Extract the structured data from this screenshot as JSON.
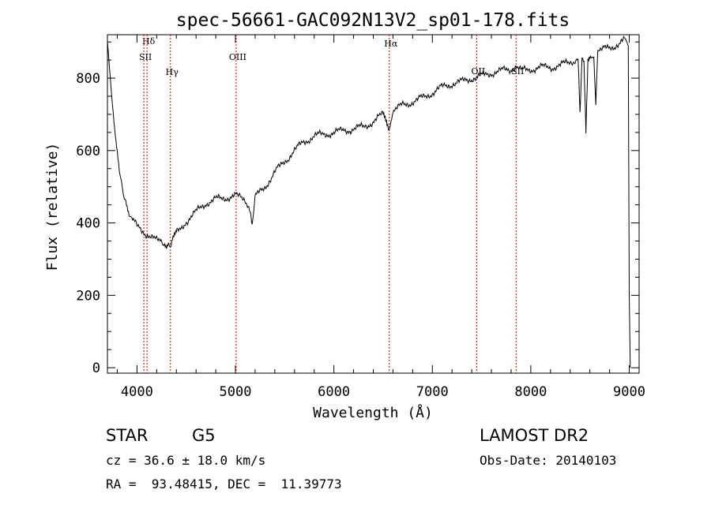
{
  "chart_data": {
    "type": "line",
    "title": "spec-56661-GAC092N13V2_sp01-178.fits",
    "xlabel": "Wavelength (Å)",
    "ylabel": "Flux (relative)",
    "xlim": [
      3700,
      9100
    ],
    "ylim": [
      -15,
      920
    ],
    "x_ticks": [
      4000,
      5000,
      6000,
      7000,
      8000,
      9000
    ],
    "x_tick_labels": [
      "4000",
      "5000",
      "6000",
      "7000",
      "8000",
      "9000"
    ],
    "y_ticks": [
      0,
      200,
      400,
      600,
      800
    ],
    "y_tick_labels": [
      "0",
      "200",
      "400",
      "600",
      "800"
    ],
    "grid": false,
    "line_color": "#000000",
    "marker_color": "#cc0000",
    "lines": [
      {
        "label": "Hδ",
        "x": 4102
      },
      {
        "label": "SII",
        "x": 4070
      },
      {
        "label": "Hγ",
        "x": 4340
      },
      {
        "label": "OIII",
        "x": 5007
      },
      {
        "label": "Hα",
        "x": 6563
      },
      {
        "label": "OII",
        "x": 7450
      },
      {
        "label": "SII",
        "x": 7850
      }
    ],
    "series": [
      {
        "x": [
          3700,
          3710,
          3720,
          3730,
          3740,
          3760,
          3780,
          3800,
          3820,
          3850,
          3880,
          3900,
          3920,
          3950,
          4000,
          4050,
          4100,
          4150,
          4200,
          4250,
          4280,
          4300,
          4320,
          4340,
          4360,
          4400,
          4450,
          4500,
          4600,
          4700,
          4800,
          4900,
          5000,
          5100,
          5150,
          5170,
          5200,
          5300,
          5400,
          5500,
          5600,
          5700,
          5800,
          5900,
          6000,
          6100,
          6200,
          6300,
          6400,
          6500,
          6560,
          6600,
          6700,
          6800,
          6900,
          7000,
          7100,
          7200,
          7300,
          7400,
          7500,
          7600,
          7700,
          7800,
          7850,
          7900,
          8000,
          8100,
          8200,
          8300,
          8400,
          8480,
          8500,
          8520,
          8540,
          8560,
          8580,
          8600,
          8640,
          8660,
          8680,
          8700,
          8800,
          8900,
          8950,
          8990,
          9000,
          9010
        ],
        "y": [
          900,
          870,
          830,
          800,
          760,
          700,
          640,
          590,
          540,
          500,
          470,
          450,
          430,
          410,
          390,
          380,
          370,
          360,
          350,
          350,
          345,
          340,
          350,
          335,
          355,
          370,
          385,
          405,
          430,
          455,
          465,
          470,
          475,
          465,
          440,
          400,
          470,
          500,
          540,
          570,
          600,
          625,
          640,
          645,
          650,
          655,
          660,
          665,
          680,
          700,
          650,
          710,
          725,
          735,
          745,
          760,
          775,
          785,
          790,
          800,
          805,
          815,
          820,
          825,
          835,
          820,
          825,
          830,
          830,
          835,
          845,
          850,
          700,
          860,
          850,
          660,
          855,
          860,
          850,
          720,
          870,
          875,
          885,
          895,
          905,
          890,
          200,
          0
        ]
      }
    ]
  },
  "footer": {
    "object_type": "STAR",
    "subclass": "G5",
    "survey": "LAMOST DR2",
    "cz": "cz = 36.6 ± 18.0 km/s",
    "obs_date": "Obs-Date: 20140103",
    "coords": "RA =  93.48415, DEC =  11.39773"
  }
}
